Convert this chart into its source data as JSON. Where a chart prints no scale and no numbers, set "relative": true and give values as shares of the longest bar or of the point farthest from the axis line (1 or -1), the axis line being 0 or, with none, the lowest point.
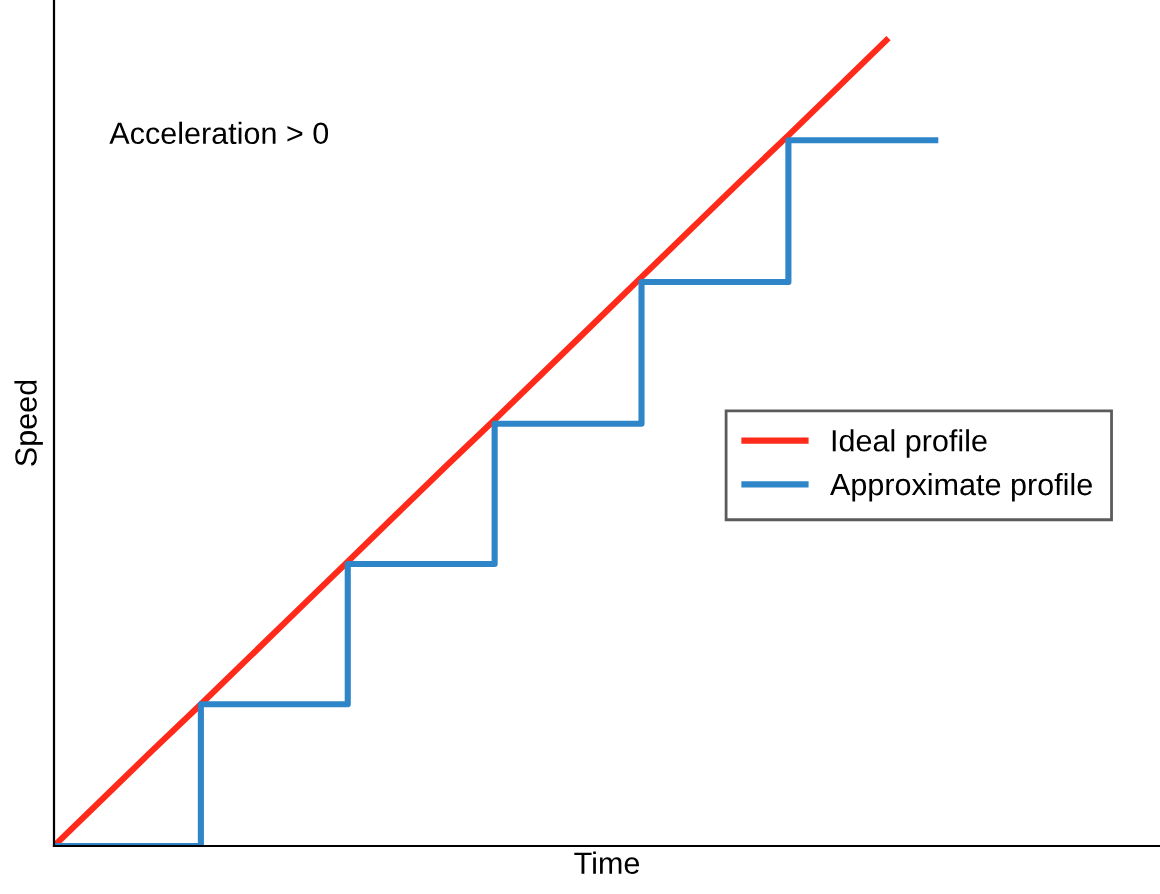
{
  "chart_data": {
    "type": "line",
    "relative": true,
    "xlabel": "Time",
    "ylabel": "Speed",
    "legend": "right",
    "annotations": [
      "Acceleration > 0"
    ],
    "categories": [
      null,
      null,
      null,
      null,
      null,
      null,
      null,
      null,
      null,
      null,
      null,
      null,
      null,
      null,
      null,
      null,
      null,
      null,
      null
    ],
    "series": [
      {
        "name": "Ideal profile",
        "color": "#ff2a1a",
        "values": [
          0,
          0.059,
          0.118,
          0.176,
          0.235,
          0.294,
          0.353,
          0.412,
          0.471,
          0.529,
          0.588,
          0.647,
          0.706,
          0.765,
          0.824,
          0.882,
          0.941,
          1,
          null
        ]
      },
      {
        "name": "Approximate profile",
        "type": "step",
        "color": "#2e86c8",
        "values": [
          0,
          0,
          0,
          0.176,
          0.176,
          0.176,
          0.35,
          0.35,
          0.35,
          0.524,
          0.524,
          0.524,
          0.7,
          0.7,
          0.7,
          0.876,
          0.876,
          0.876,
          0.876
        ]
      }
    ]
  }
}
